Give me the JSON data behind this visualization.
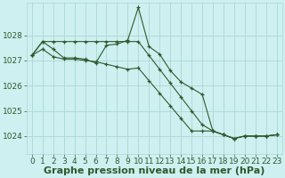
{
  "background_color": "#cff0f0",
  "grid_color": "#a8d8d8",
  "line_color": "#2d5a2d",
  "xlabel": "Graphe pression niveau de la mer (hPa)",
  "xlabel_fontsize": 8,
  "ylabel_fontsize": 6.5,
  "tick_fontsize": 6.5,
  "xlim": [
    -0.5,
    23.5
  ],
  "ylim": [
    1023.3,
    1029.3
  ],
  "yticks": [
    1024,
    1025,
    1026,
    1027,
    1028
  ],
  "xticks": [
    0,
    1,
    2,
    3,
    4,
    5,
    6,
    7,
    8,
    9,
    10,
    11,
    12,
    13,
    14,
    15,
    16,
    17,
    18,
    19,
    20,
    21,
    22,
    23
  ],
  "series": [
    {
      "x": [
        0,
        1,
        2,
        3,
        4,
        5,
        6,
        7,
        8,
        9,
        10,
        11,
        12,
        13,
        14,
        15,
        16,
        17,
        18,
        19,
        20,
        21,
        22,
        23
      ],
      "y": [
        1027.2,
        1027.75,
        1027.45,
        1027.1,
        1027.1,
        1027.05,
        1026.9,
        1027.6,
        1027.65,
        1027.8,
        1029.1,
        1027.55,
        1027.25,
        1026.6,
        1026.15,
        1025.9,
        1025.65,
        1024.2,
        1024.05,
        1023.9,
        1024.0,
        1024.0,
        1024.0,
        1024.05
      ]
    },
    {
      "x": [
        0,
        1,
        2,
        3,
        4,
        5,
        6,
        7,
        8,
        9,
        10,
        11,
        12,
        13,
        14,
        15,
        16,
        17,
        18,
        19,
        20,
        21,
        22,
        23
      ],
      "y": [
        1027.2,
        1027.75,
        1027.75,
        1027.75,
        1027.75,
        1027.75,
        1027.75,
        1027.75,
        1027.75,
        1027.75,
        1027.75,
        1027.2,
        1026.65,
        1026.1,
        1025.55,
        1025.0,
        1024.45,
        1024.2,
        1024.05,
        1023.9,
        1024.0,
        1024.0,
        1024.0,
        1024.05
      ]
    },
    {
      "x": [
        0,
        1,
        2,
        3,
        4,
        5,
        6,
        7,
        8,
        9,
        10,
        11,
        12,
        13,
        14,
        15,
        16,
        17,
        18,
        19,
        20,
        21,
        22,
        23
      ],
      "y": [
        1027.2,
        1027.45,
        1027.15,
        1027.05,
        1027.05,
        1027.0,
        1026.95,
        1026.85,
        1026.75,
        1026.65,
        1026.7,
        1026.2,
        1025.7,
        1025.2,
        1024.7,
        1024.2,
        1024.2,
        1024.2,
        1024.05,
        1023.9,
        1024.0,
        1024.0,
        1024.0,
        1024.05
      ]
    }
  ]
}
